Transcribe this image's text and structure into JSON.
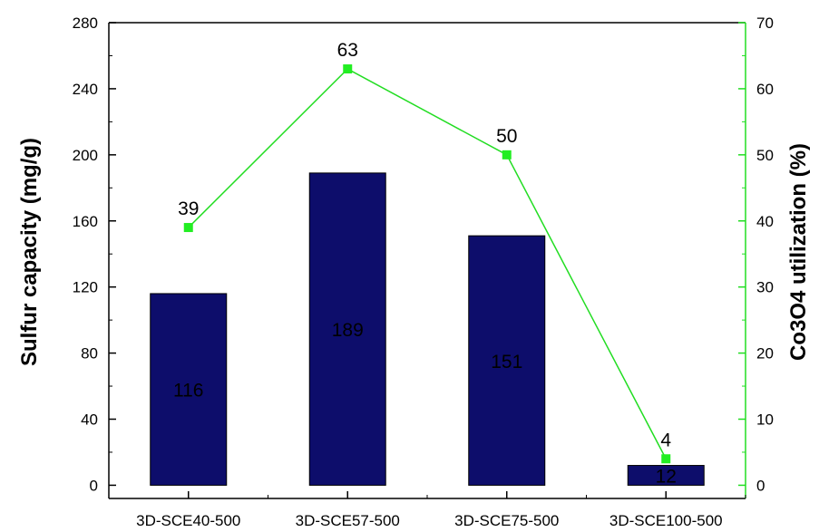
{
  "chart_data": {
    "type": "bar",
    "categories": [
      "3D-SCE40-500",
      "3D-SCE57-500",
      "3D-SCE75-500",
      "3D-SCE100-500"
    ],
    "series": [
      {
        "values": [
          116,
          189,
          151,
          12
        ],
        "axis": "left",
        "type": "bar",
        "color": "#0d0d6b",
        "data_labels": [
          "116",
          "189",
          "151",
          "12"
        ]
      },
      {
        "values": [
          39,
          63,
          50,
          4
        ],
        "axis": "right",
        "type": "line",
        "color": "#22dd22",
        "marker_color": "#22ee22",
        "data_labels": [
          "39",
          "63",
          "50",
          "4"
        ]
      }
    ],
    "ylabel": "Sulfur capacity (mg/g)",
    "ylabel_right": "Co3O4 utilization (%)",
    "ylim": [
      -8,
      280
    ],
    "ylim_right": [
      -2,
      70
    ],
    "yticks": [
      0,
      40,
      80,
      120,
      160,
      200,
      240,
      280
    ],
    "yticks_right": [
      0,
      10,
      20,
      30,
      40,
      50,
      60,
      70
    ],
    "right_axis_color": "#22dd22",
    "grid": false,
    "legend": "none"
  }
}
